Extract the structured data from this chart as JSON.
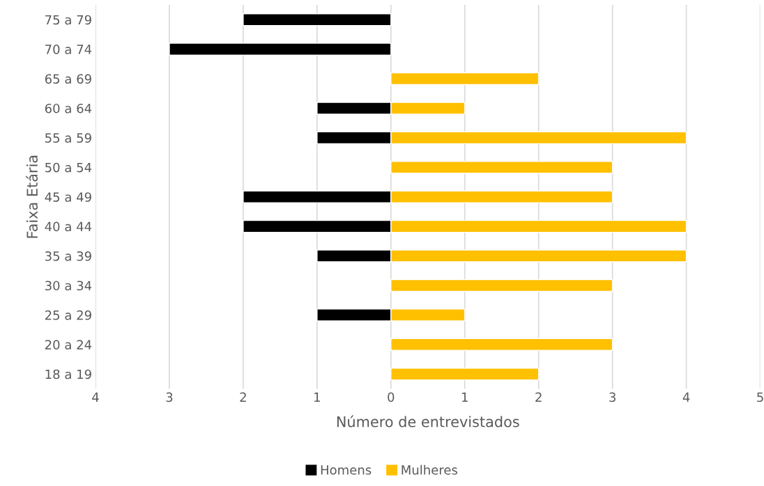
{
  "chart_data": {
    "type": "bar",
    "orientation": "horizontal",
    "ylabel": "Faixa Etária",
    "xlabel": "Número de entrevistados",
    "categories": [
      "75 a 79",
      "70 a 74",
      "65 a 69",
      "60 a 64",
      "55 a 59",
      "50 a 54",
      "45 a 49",
      "40 a 44",
      "35 a 39",
      "30 a 34",
      "25 a 29",
      "20 a 24",
      "18 a 19"
    ],
    "series": [
      {
        "name": "Homens",
        "color": "#000000",
        "values": [
          -2,
          -3,
          null,
          -1,
          -1,
          null,
          -2,
          -2,
          -1,
          null,
          -1,
          null,
          null
        ]
      },
      {
        "name": "Mulheres",
        "color": "#ffc000",
        "values": [
          null,
          null,
          2,
          1,
          4,
          3,
          3,
          4,
          4,
          3,
          1,
          3,
          2
        ]
      }
    ],
    "xlim": [
      -4,
      5
    ],
    "xticks": [
      {
        "value": -4,
        "label": "4"
      },
      {
        "value": -3,
        "label": "3"
      },
      {
        "value": -2,
        "label": "2"
      },
      {
        "value": -1,
        "label": "1"
      },
      0,
      1,
      2,
      3,
      4,
      5
    ],
    "grid": "x",
    "legend": "bottom"
  }
}
